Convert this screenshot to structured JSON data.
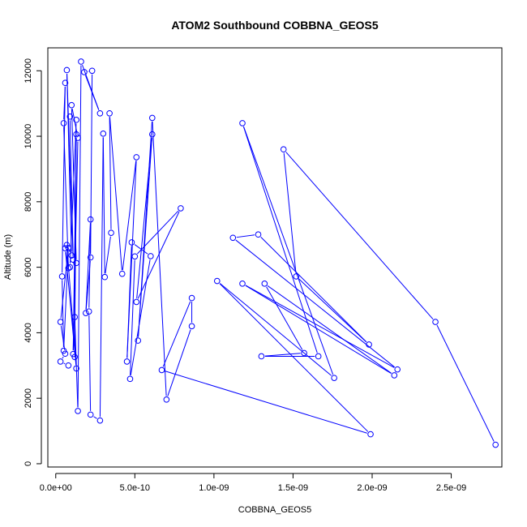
{
  "chart_data": {
    "type": "line",
    "title": "ATOM2 Southbound COBBNA_GEOS5",
    "xlabel": "COBBNA_GEOS5",
    "ylabel": "Altitude (m)",
    "xlim": [
      -5e-11,
      2.82e-09
    ],
    "ylim": [
      -100,
      12700
    ],
    "x_ticks": [
      {
        "value": 0,
        "label": "0.0e+00"
      },
      {
        "value": 5e-10,
        "label": "5.0e-10"
      },
      {
        "value": 1e-09,
        "label": "1.0e-09"
      },
      {
        "value": 1.5e-09,
        "label": "1.5e-09"
      },
      {
        "value": 2e-09,
        "label": "2.0e-09"
      },
      {
        "value": 2.5e-09,
        "label": "2.5e-09"
      }
    ],
    "y_ticks": [
      {
        "value": 0,
        "label": "0"
      },
      {
        "value": 2000,
        "label": "2000"
      },
      {
        "value": 4000,
        "label": "4000"
      },
      {
        "value": 6000,
        "label": "6000"
      },
      {
        "value": 8000,
        "label": "8000"
      },
      {
        "value": 10000,
        "label": "10000"
      },
      {
        "value": 12000,
        "label": "12000"
      }
    ],
    "series_color": "#0000ff",
    "marker": "open-circle",
    "series": [
      {
        "x": [
          2.78e-09,
          2.4e-09,
          1.44e-09,
          1.52e-09,
          1.98e-09,
          1.28e-09,
          1.12e-09,
          2.16e-09,
          1.18e-09,
          2.14e-09,
          1.32e-09,
          1.57e-09,
          1.3e-09,
          1.66e-09,
          1.18e-09,
          1.76e-09,
          1.02e-09,
          1.99e-09,
          6.7e-10,
          8.6e-10,
          8.6e-10,
          7e-10,
          6.1e-10,
          5.2e-10,
          6.1e-10,
          5.1e-10,
          7.9e-10,
          5e-10,
          4.7e-10,
          6e-10,
          4.8e-10,
          4.5e-10,
          5.1e-10,
          4.2e-10,
          3.4e-10,
          3.5e-10,
          3.1e-10,
          3e-10,
          2.8e-10,
          2.2e-10,
          2.1e-10,
          2.2e-10,
          1.9e-10,
          2.2e-10,
          2.3e-10,
          1.8e-10,
          2.8e-10,
          1.6e-10,
          1.4e-10,
          1.2e-10,
          1.2e-10,
          1.3e-10,
          1.1e-10,
          1.4e-10,
          1e-10,
          1.3e-10,
          9e-11,
          1.3e-10,
          9e-11,
          1.1e-10,
          7e-11,
          1e-10,
          7e-11,
          1.3e-10,
          6e-11,
          8e-11,
          5e-11,
          6e-11,
          4e-11,
          5e-11,
          8e-11,
          3e-11,
          6e-11,
          3e-11,
          8e-11
        ],
        "y": [
          580,
          4330,
          9600,
          5720,
          3640,
          7000,
          6900,
          2880,
          5500,
          2700,
          5500,
          3380,
          3280,
          3280,
          10400,
          2620,
          5580,
          900,
          2860,
          5060,
          4200,
          1960,
          10560,
          3760,
          10060,
          4940,
          7800,
          6330,
          2590,
          6340,
          6760,
          3120,
          9360,
          5800,
          10700,
          7050,
          5700,
          10080,
          1320,
          1500,
          4650,
          7460,
          4600,
          6300,
          12000,
          11960,
          10700,
          12280,
          1610,
          4480,
          3260,
          10060,
          3350,
          9950,
          10950,
          6130,
          6000,
          10500,
          10600,
          6230,
          12020,
          6360,
          6680,
          2910,
          6580,
          5970,
          10400,
          11630,
          5720,
          3450,
          6590,
          4330,
          3360,
          3120,
          3000
        ]
      }
    ]
  }
}
